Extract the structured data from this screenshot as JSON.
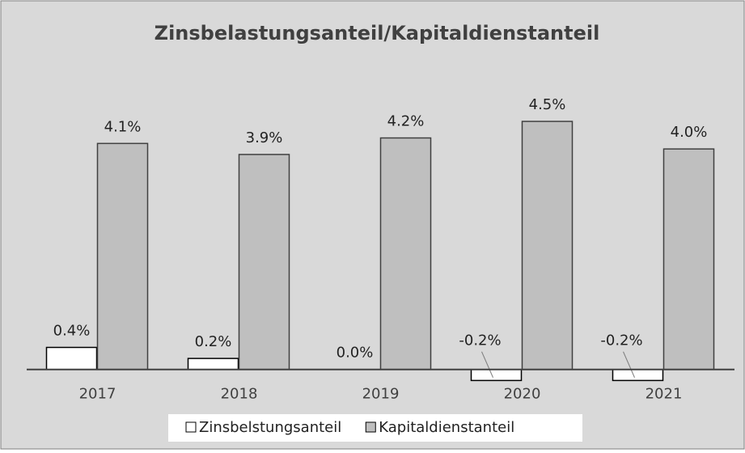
{
  "chart_data": {
    "type": "bar",
    "title": "Zinsbelastungsanteil/Kapitaldienstanteil",
    "categories": [
      "2017",
      "2018",
      "2019",
      "2020",
      "2021"
    ],
    "series": [
      {
        "name": "Zinsbelstungsanteil",
        "color": "#ffffff",
        "values": [
          0.4,
          0.2,
          0.0,
          -0.2,
          -0.2
        ],
        "value_labels": [
          "0.4%",
          "0.2%",
          "0.0%",
          "-0.2%",
          "-0.2%"
        ]
      },
      {
        "name": "Kapitaldienstanteil",
        "color": "#bfbfbf",
        "values": [
          4.1,
          3.9,
          4.2,
          4.5,
          4.0
        ],
        "value_labels": [
          "4.1%",
          "3.9%",
          "4.2%",
          "4.5%",
          "4.0%"
        ]
      }
    ],
    "ylim": [
      -0.4,
      5.0
    ],
    "legend": "bottom"
  }
}
